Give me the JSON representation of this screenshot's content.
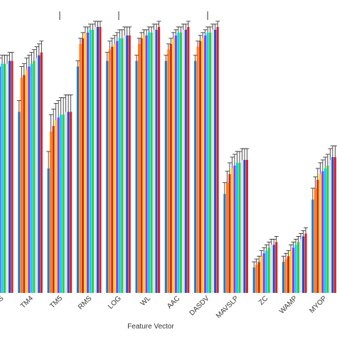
{
  "chart_data": {
    "type": "bar",
    "title": "",
    "xlabel": "Feature Vector",
    "ylabel": "",
    "ylim": [
      0,
      100
    ],
    "legend": "none",
    "grid": false,
    "series_colors": [
      "#1f77d4",
      "#ff7f0e",
      "#d62728",
      "#ffd500",
      "#9b30ff",
      "#00d4ff",
      "#2ecc40",
      "#e0e0e0",
      "#1f4fd4",
      "#e02020"
    ],
    "categories": [
      "S",
      "TM4",
      "TM5",
      "RMS",
      "LOG",
      "WL",
      "AAC",
      "DASDV",
      "MAVSLP",
      "ZC",
      "WAMP",
      "MYOP"
    ],
    "series": [
      {
        "values": [
          76,
          64,
          44,
          80,
          82,
          82,
          82,
          82,
          35,
          9,
          11,
          33
        ]
      },
      {
        "values": [
          78,
          76,
          57,
          88,
          86,
          88,
          86,
          87,
          39,
          10,
          12,
          37
        ]
      },
      {
        "values": [
          79,
          77,
          59,
          90,
          87,
          90,
          88,
          89,
          42,
          11,
          13,
          40
        ]
      },
      {
        "values": [
          80,
          79,
          61,
          92,
          88,
          91,
          90,
          90,
          44,
          13,
          15,
          42
        ]
      },
      {
        "values": [
          80,
          80,
          62,
          92,
          89,
          91,
          91,
          91,
          45,
          14,
          16,
          43
        ]
      },
      {
        "values": [
          81,
          81,
          63,
          93,
          90,
          92,
          92,
          92,
          46,
          15,
          17,
          44
        ]
      },
      {
        "values": [
          81,
          82,
          63,
          93,
          90,
          92,
          92,
          92,
          46,
          16,
          18,
          45
        ]
      },
      {
        "values": [
          81,
          83,
          64,
          94,
          91,
          93,
          93,
          93,
          47,
          17,
          19,
          47
        ]
      },
      {
        "values": [
          82,
          84,
          64,
          94,
          91,
          93,
          93,
          93,
          47,
          17,
          20,
          48
        ]
      },
      {
        "values": [
          82,
          85,
          64,
          94,
          91,
          94,
          94,
          94,
          47,
          18,
          21,
          48
        ]
      }
    ],
    "errors": [
      3,
      4,
      6,
      2,
      3,
      2,
      2,
      2,
      4,
      2,
      2,
      4
    ]
  }
}
